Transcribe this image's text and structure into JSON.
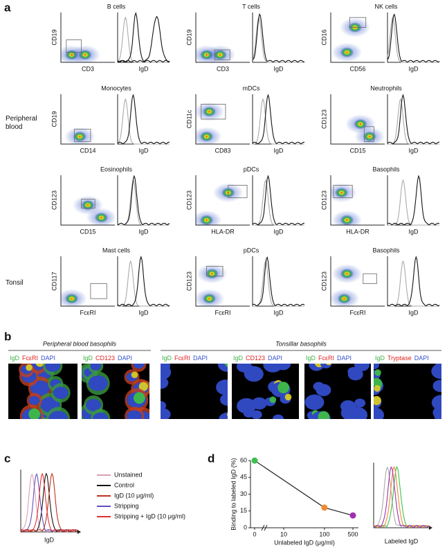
{
  "panel_a": {
    "label": "a",
    "row_labels": [
      "Peripheral blood",
      "Tonsil"
    ],
    "plots": [
      {
        "title": "B cells",
        "y_label": "CD19",
        "x_label": "CD3",
        "hist_label": "IgD"
      },
      {
        "title": "T cells",
        "y_label": "CD19",
        "x_label": "CD3",
        "hist_label": "IgD"
      },
      {
        "title": "NK cells",
        "y_label": "CD16",
        "x_label": "CD56",
        "hist_label": "IgD"
      },
      {
        "title": "Monocytes",
        "y_label": "CD19",
        "x_label": "CD14",
        "hist_label": "IgD"
      },
      {
        "title": "mDCs",
        "y_label": "CD11c",
        "x_label": "CD83",
        "hist_label": "IgD"
      },
      {
        "title": "Neutrophils",
        "y_label": "CD123",
        "x_label": "CD15",
        "hist_label": "IgD"
      },
      {
        "title": "Eosinophils",
        "y_label": "CD123",
        "x_label": "CD15",
        "hist_label": "IgD"
      },
      {
        "title": "pDCs",
        "y_label": "CD123",
        "x_label": "HLA-DR",
        "hist_label": "IgD"
      },
      {
        "title": "Basophils",
        "y_label": "CD123",
        "x_label": "HLA-DR",
        "hist_label": "IgD"
      },
      {
        "title": "Mast cells",
        "y_label": "CD117",
        "x_label": "FcεRI",
        "hist_label": "IgD"
      },
      {
        "title": "pDCs",
        "y_label": "CD123",
        "x_label": "FcεRI",
        "hist_label": "IgD"
      },
      {
        "title": "Basophils",
        "y_label": "CD123",
        "x_label": "FcεRI",
        "hist_label": "IgD"
      }
    ]
  },
  "panel_b": {
    "label": "b",
    "groups": [
      {
        "title": "Peripheral blood basophils",
        "images": [
          [
            {
              "text": "IgD",
              "color": "#3cb043"
            },
            {
              "text": "FcεRI",
              "color": "#e02020"
            },
            {
              "text": "DAPI",
              "color": "#3050d0"
            }
          ],
          [
            {
              "text": "IgD",
              "color": "#3cb043"
            },
            {
              "text": "CD123",
              "color": "#e02020"
            },
            {
              "text": "DAPI",
              "color": "#3050d0"
            }
          ]
        ]
      },
      {
        "title": "Tonsillar basophils",
        "images": [
          [
            {
              "text": "IgD",
              "color": "#3cb043"
            },
            {
              "text": "FcεRI",
              "color": "#e02020"
            },
            {
              "text": "DAPI",
              "color": "#3050d0"
            }
          ],
          [
            {
              "text": "IgD",
              "color": "#3cb043"
            },
            {
              "text": "CD123",
              "color": "#e02020"
            },
            {
              "text": "DAPI",
              "color": "#3050d0"
            }
          ],
          [
            {
              "text": "IgD",
              "color": "#3cb043"
            },
            {
              "text": "FcεRI",
              "color": "#e02020"
            },
            {
              "text": "DAPI",
              "color": "#3050d0"
            }
          ],
          [
            {
              "text": "IgD",
              "color": "#3cb043"
            },
            {
              "text": "Tryptase",
              "color": "#e02020"
            },
            {
              "text": "DAPI",
              "color": "#3050d0"
            }
          ]
        ]
      }
    ]
  },
  "panel_c": {
    "label": "c",
    "x_label": "IgD",
    "legend": [
      {
        "name": "Unstained",
        "color": "#d9a0b0"
      },
      {
        "name": "Control",
        "color": "#111111"
      },
      {
        "name": "IgD (10 μg/ml)",
        "color": "#c0301c"
      },
      {
        "name": "Stripping",
        "color": "#6050c0"
      },
      {
        "name": "Stripping + IgD (10 μg/ml)",
        "color": "#e03030"
      }
    ]
  },
  "panel_d": {
    "label": "d",
    "hist_label": "Labeled IgD"
  },
  "chart_data": {
    "type": "line",
    "x_label": "Unlabeled IgD (μg/ml)",
    "y_label": "Binding to labeled IgD (%)",
    "x": [
      0,
      100,
      500
    ],
    "values": [
      60,
      18,
      11
    ],
    "point_colors": [
      "#3cc050",
      "#f08a30",
      "#a030b0"
    ],
    "line_color": "#222222",
    "xlim": [
      0,
      500
    ],
    "ylim": [
      0,
      60
    ],
    "xticks": [
      0,
      10,
      100,
      500
    ],
    "yticks": [
      0,
      15,
      30,
      45,
      60
    ],
    "x_scale": "log",
    "x_axis_break": true
  }
}
